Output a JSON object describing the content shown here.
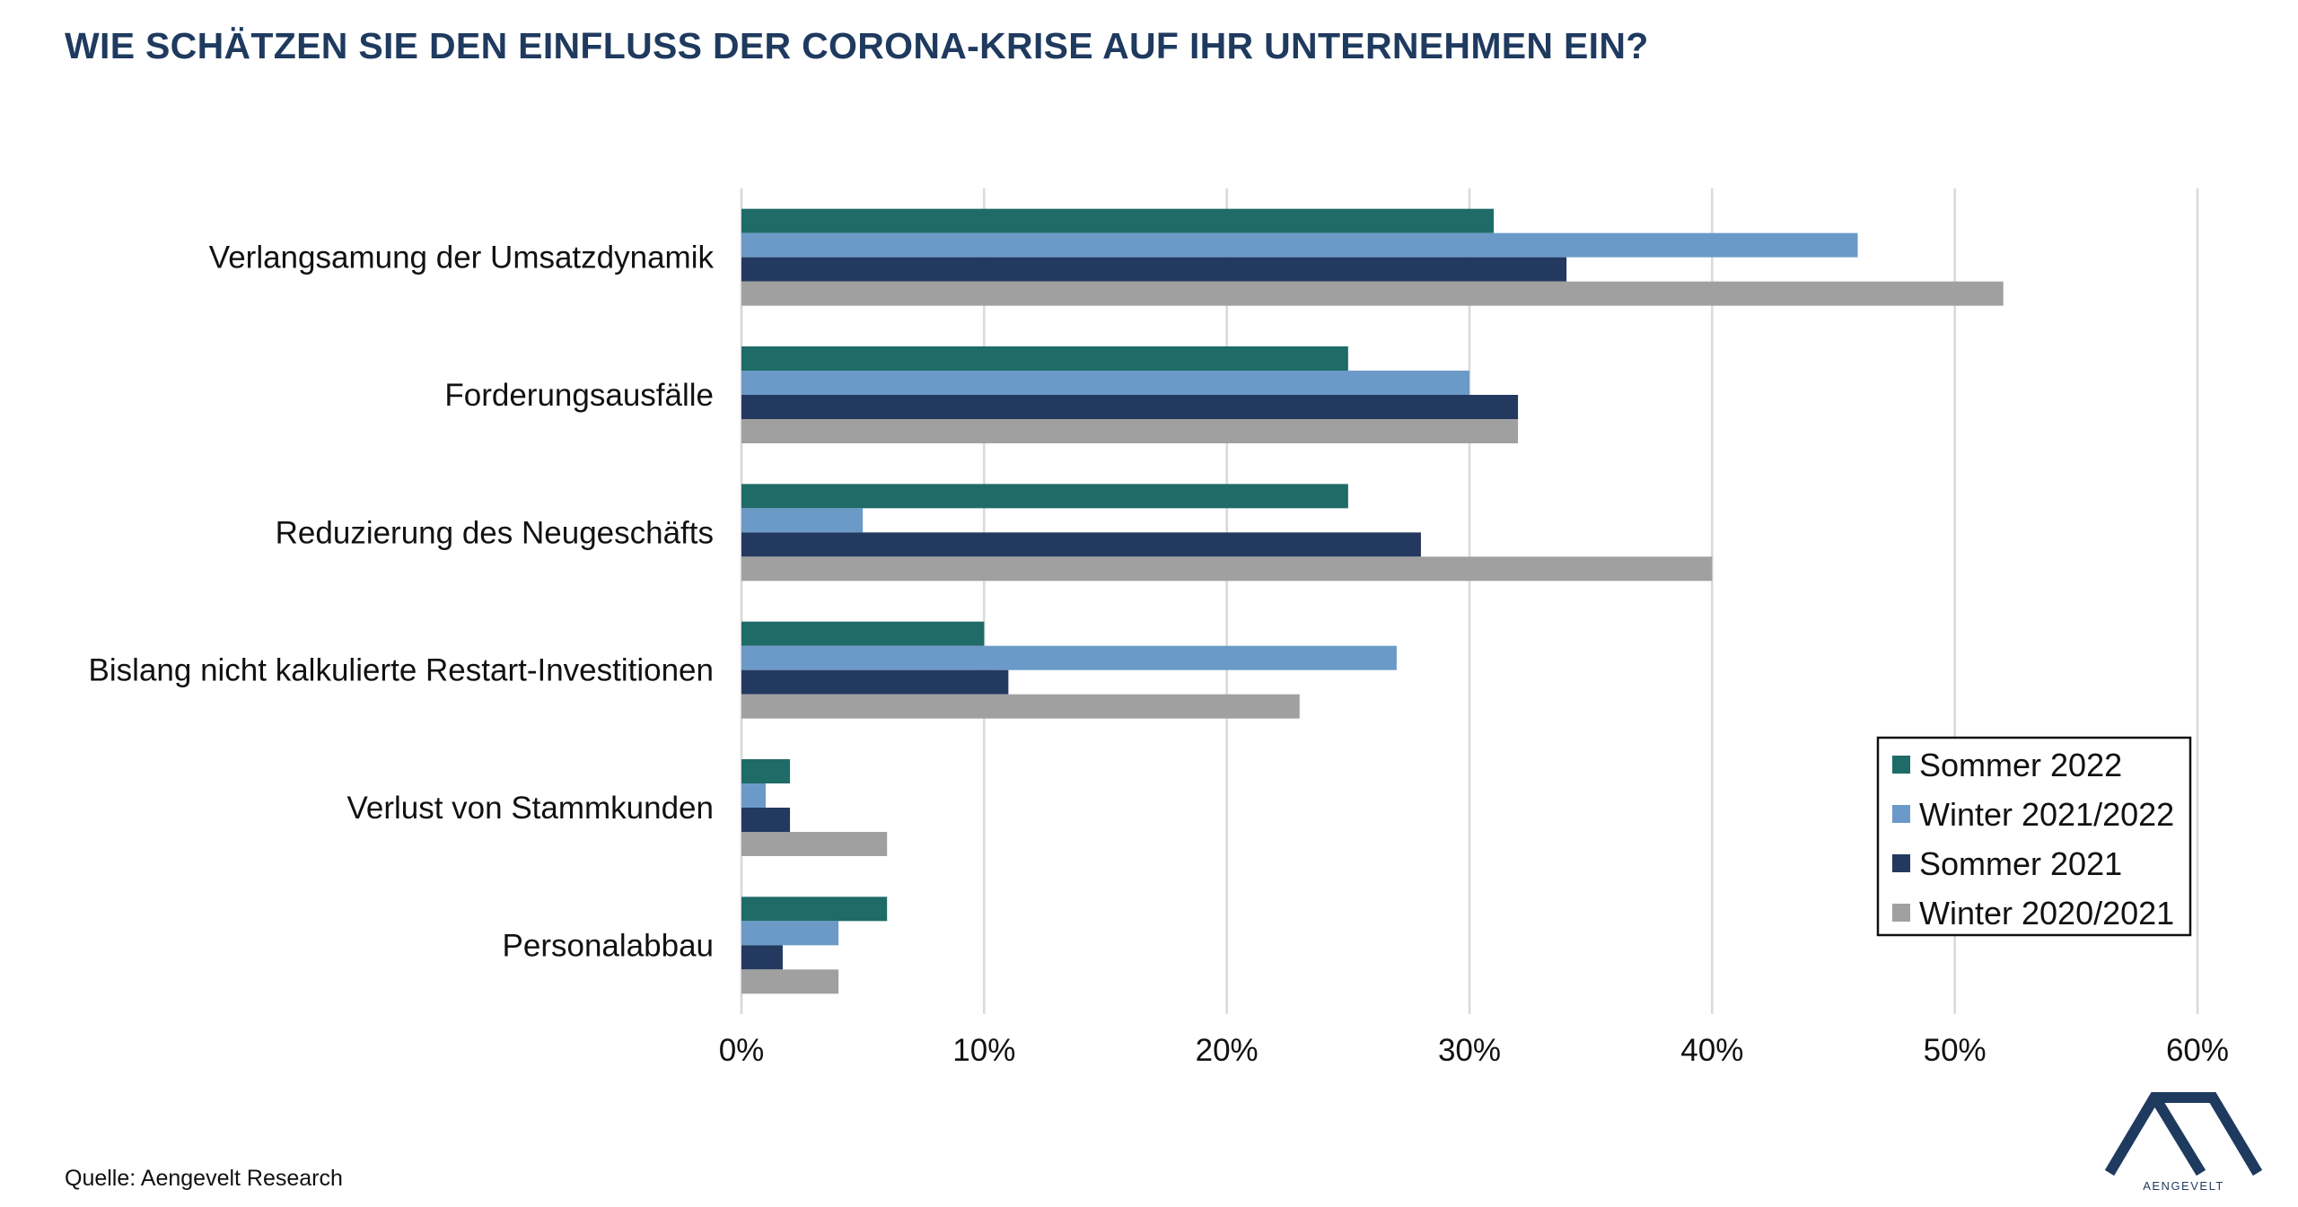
{
  "title": "WIE SCHÄTZEN SIE DEN EINFLUSS DER CORONA-KRISE AUF IHR UNTERNEHMEN EIN?",
  "source": "Quelle: Aengevelt Research",
  "logo": {
    "text": "AENGEVELT",
    "color": "#1f3a5f"
  },
  "chart_data": {
    "type": "bar",
    "orientation": "horizontal",
    "title": "",
    "xlabel": "",
    "ylabel": "",
    "categories": [
      "Verlangsamung der Umsatzdynamik",
      "Forderungsausfälle",
      "Reduzierung des Neugeschäfts",
      "Bislang nicht kalkulierte Restart-Investitionen",
      "Verlust von Stammkunden",
      "Personalabbau"
    ],
    "series": [
      {
        "name": "Sommer 2022",
        "color": "#1e6b68",
        "values": [
          31,
          25,
          25,
          10,
          2,
          6
        ]
      },
      {
        "name": "Winter 2021/2022",
        "color": "#6b9ac8",
        "values": [
          46,
          30,
          5,
          27,
          1,
          4
        ]
      },
      {
        "name": "Sommer 2021",
        "color": "#23395f",
        "values": [
          34,
          32,
          28,
          11,
          2,
          1.7
        ]
      },
      {
        "name": "Winter 2020/2021",
        "color": "#a0a0a0",
        "values": [
          52,
          32,
          40,
          23,
          6,
          4
        ]
      }
    ],
    "xlim": [
      0,
      60
    ],
    "xticks": [
      0,
      10,
      20,
      30,
      40,
      50,
      60
    ],
    "tick_labels": [
      "0%",
      "10%",
      "20%",
      "30%",
      "40%",
      "50%",
      "60%"
    ],
    "grid": true,
    "legend_position": "bottom-right"
  }
}
